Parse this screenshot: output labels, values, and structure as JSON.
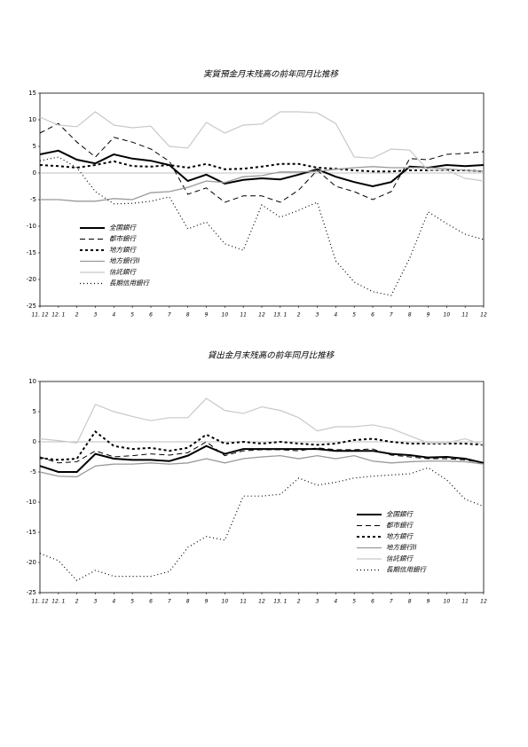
{
  "chart_data": [
    {
      "type": "line",
      "title": "実質預金月末残高の前年同月比推移",
      "categories": [
        "11. 12",
        "12. 1",
        "2",
        "3",
        "4",
        "5",
        "6",
        "7",
        "8",
        "9",
        "10",
        "11",
        "12",
        "13. 1",
        "2",
        "3",
        "4",
        "5",
        "6",
        "7",
        "8",
        "9",
        "10",
        "11",
        "12"
      ],
      "ylim": [
        -25,
        15
      ],
      "yticks": [
        15,
        10,
        5,
        0,
        -5,
        -10,
        -15,
        -20,
        -25
      ],
      "zero_line": true,
      "legend": "lower-left",
      "series": [
        {
          "name": "全国銀行",
          "color": "#000000",
          "width": 2,
          "dash": "none",
          "values": [
            3.5,
            4.2,
            2.5,
            1.8,
            3.5,
            2.7,
            2.3,
            1.5,
            -1.5,
            -0.3,
            -2.0,
            -1.3,
            -1.0,
            -1.2,
            -0.3,
            0.7,
            -0.7,
            -1.7,
            -2.5,
            -1.7,
            1.2,
            1.0,
            1.5,
            1.3,
            1.5
          ]
        },
        {
          "name": "都市銀行",
          "color": "#000000",
          "width": 1,
          "dash": "6,4",
          "values": [
            7.5,
            9.3,
            5.8,
            3.0,
            6.7,
            5.8,
            4.5,
            2.2,
            -4.0,
            -2.8,
            -5.5,
            -4.3,
            -4.3,
            -5.5,
            -3.2,
            0.5,
            -2.5,
            -3.5,
            -5.0,
            -3.5,
            2.7,
            2.5,
            3.5,
            3.7,
            4.0
          ]
        },
        {
          "name": "地方銀行",
          "color": "#000000",
          "width": 2,
          "dash": "3,3",
          "values": [
            1.5,
            1.3,
            1.0,
            1.5,
            2.2,
            1.3,
            1.2,
            1.5,
            1.0,
            1.7,
            0.7,
            0.8,
            1.2,
            1.7,
            1.7,
            1.0,
            0.8,
            0.5,
            0.3,
            0.3,
            0.5,
            0.5,
            0.5,
            0.5,
            0.3
          ]
        },
        {
          "name": "地方銀行II",
          "color": "#999999",
          "width": 1.3,
          "dash": "none",
          "values": [
            -5.0,
            -5.0,
            -5.3,
            -5.3,
            -4.8,
            -5.0,
            -3.7,
            -3.5,
            -2.7,
            -1.5,
            -1.8,
            -0.7,
            -0.5,
            0.2,
            0.2,
            0.3,
            0.7,
            1.0,
            1.2,
            1.0,
            1.0,
            1.0,
            0.8,
            0.5,
            0.3
          ]
        },
        {
          "name": "信託銀行",
          "color": "#c8c8c8",
          "width": 1.2,
          "dash": "none",
          "values": [
            10.5,
            9.0,
            8.7,
            11.5,
            9.0,
            8.5,
            8.8,
            5.0,
            4.7,
            9.5,
            7.5,
            9.0,
            9.2,
            11.5,
            11.5,
            11.3,
            9.3,
            3.0,
            2.8,
            4.5,
            4.3,
            0.5,
            0.5,
            -1.0,
            -1.5
          ]
        },
        {
          "name": "長期信用銀行",
          "color": "#000000",
          "width": 1.2,
          "dash": "1,3",
          "values": [
            2.3,
            3.0,
            1.0,
            -3.5,
            -5.8,
            -5.7,
            -5.3,
            -4.5,
            -10.5,
            -9.2,
            -13.3,
            -14.5,
            -6.0,
            -8.3,
            -7.0,
            -5.5,
            -16.5,
            -20.5,
            -22.3,
            -23.0,
            -16.0,
            -7.3,
            -9.5,
            -11.5,
            -12.5
          ]
        }
      ]
    },
    {
      "type": "line",
      "title": "貸出金月末残高の前年同月比推移",
      "categories": [
        "11. 12",
        "12. 1",
        "2",
        "3",
        "4",
        "5",
        "6",
        "7",
        "8",
        "9",
        "10",
        "11",
        "12",
        "13. 1",
        "2",
        "3",
        "4",
        "5",
        "6",
        "7",
        "8",
        "9",
        "10",
        "11",
        "12"
      ],
      "ylim": [
        -25,
        10
      ],
      "yticks": [
        10,
        5,
        0,
        -5,
        -10,
        -15,
        -20,
        -25
      ],
      "zero_line": true,
      "legend": "lower-right",
      "series": [
        {
          "name": "全国銀行",
          "color": "#000000",
          "width": 2,
          "dash": "none",
          "values": [
            -4.0,
            -5.0,
            -5.0,
            -2.0,
            -2.8,
            -3.0,
            -3.0,
            -3.2,
            -2.3,
            -0.7,
            -2.0,
            -1.2,
            -1.2,
            -1.2,
            -1.2,
            -1.2,
            -1.5,
            -1.5,
            -1.5,
            -2.0,
            -2.2,
            -2.6,
            -2.5,
            -2.8,
            -3.5
          ]
        },
        {
          "name": "都市銀行",
          "color": "#000000",
          "width": 1,
          "dash": "6,4",
          "values": [
            -2.5,
            -3.5,
            -3.3,
            -1.5,
            -2.5,
            -2.3,
            -2.0,
            -2.2,
            -1.8,
            0.0,
            -2.3,
            -1.5,
            -1.3,
            -1.3,
            -1.5,
            -1.0,
            -1.3,
            -1.3,
            -1.2,
            -2.2,
            -2.5,
            -2.8,
            -2.8,
            -3.0,
            -3.5
          ]
        },
        {
          "name": "地方銀行",
          "color": "#000000",
          "width": 2,
          "dash": "3,3",
          "values": [
            -2.7,
            -3.0,
            -2.8,
            1.7,
            -0.7,
            -1.2,
            -1.0,
            -1.5,
            -1.0,
            1.2,
            -0.3,
            0.0,
            -0.3,
            0.0,
            -0.3,
            -0.5,
            -0.3,
            0.3,
            0.5,
            0.0,
            -0.3,
            -0.3,
            -0.3,
            -0.3,
            -0.5
          ]
        },
        {
          "name": "地方銀行II",
          "color": "#999999",
          "width": 1.3,
          "dash": "none",
          "values": [
            -5.0,
            -5.7,
            -5.8,
            -4.0,
            -3.7,
            -3.7,
            -3.5,
            -3.7,
            -3.5,
            -2.8,
            -3.5,
            -2.8,
            -2.5,
            -2.3,
            -2.8,
            -2.3,
            -2.8,
            -2.3,
            -3.2,
            -3.5,
            -3.3,
            -3.2,
            -3.2,
            -3.3,
            -3.7
          ]
        },
        {
          "name": "信託銀行",
          "color": "#c8c8c8",
          "width": 1.2,
          "dash": "none",
          "values": [
            0.5,
            0.2,
            -0.2,
            6.2,
            5.0,
            4.2,
            3.5,
            4.0,
            4.0,
            7.2,
            5.2,
            4.7,
            5.8,
            5.2,
            4.0,
            1.8,
            2.5,
            2.5,
            2.8,
            2.2,
            1.0,
            -0.2,
            -0.2,
            0.5,
            -0.5
          ]
        },
        {
          "name": "長期信用銀行",
          "color": "#000000",
          "width": 1.2,
          "dash": "1,3",
          "values": [
            -18.5,
            -19.7,
            -23.0,
            -21.3,
            -22.3,
            -22.3,
            -22.3,
            -21.5,
            -17.5,
            -15.7,
            -16.3,
            -9.0,
            -9.0,
            -8.7,
            -6.0,
            -7.2,
            -6.7,
            -6.0,
            -5.7,
            -5.5,
            -5.3,
            -4.3,
            -6.3,
            -9.5,
            -10.7
          ]
        }
      ]
    }
  ]
}
